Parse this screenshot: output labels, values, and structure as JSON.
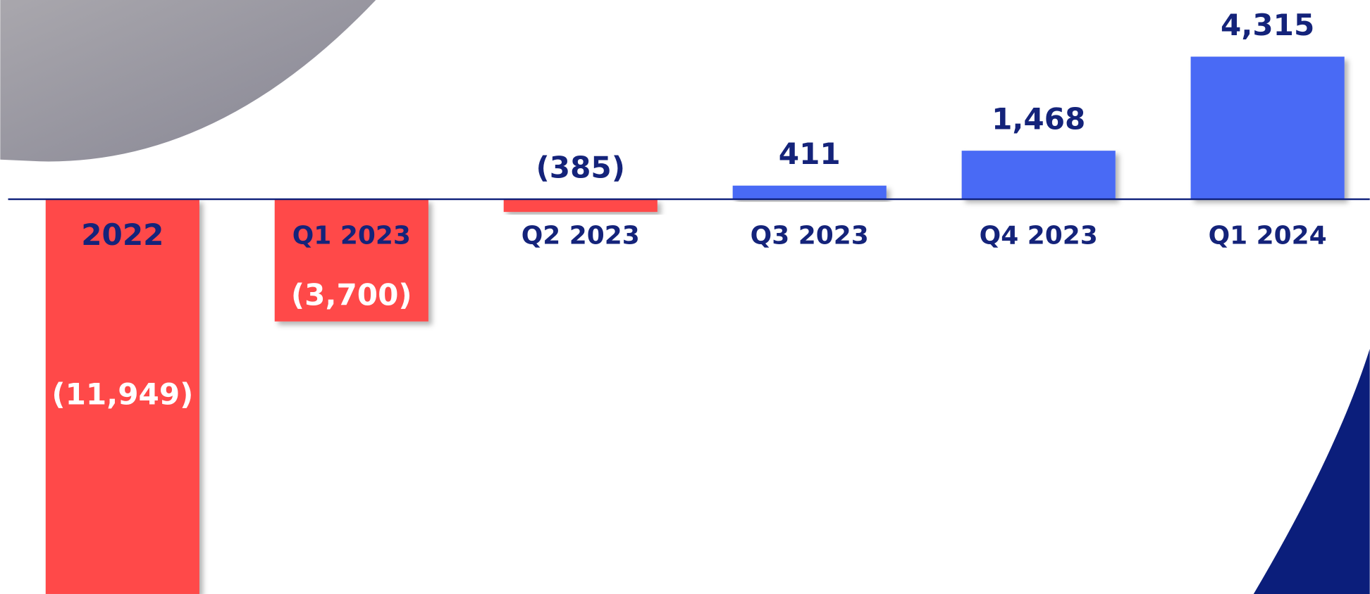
{
  "chart_data": {
    "type": "bar",
    "categories": [
      "2022",
      "Q1 2023",
      "Q2 2023",
      "Q3 2023",
      "Q4 2023",
      "Q1 2024"
    ],
    "values": [
      -11949,
      -3700,
      -385,
      411,
      1468,
      4315
    ],
    "value_labels": [
      "(11,949)",
      "(3,700)",
      "(385)",
      "411",
      "1,468",
      "4,315"
    ],
    "colors": [
      "#ff4848",
      "#ff4848",
      "#ff4848",
      "#4a6af5",
      "#4a6af5",
      "#4a6af5"
    ],
    "ylim": [
      -11950,
      6030
    ]
  }
}
